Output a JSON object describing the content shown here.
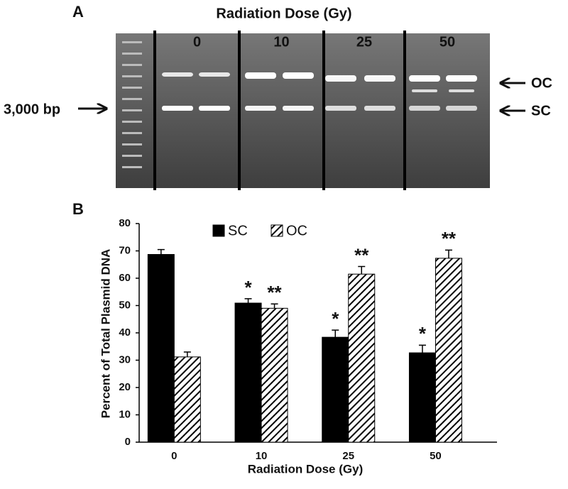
{
  "panel_a": {
    "label": "A",
    "title": "Radiation Dose (Gy)",
    "lanes": [
      "0",
      "10",
      "25",
      "50"
    ],
    "marker": "3,000 bp",
    "bands": [
      "OC",
      "SC"
    ]
  },
  "chart_data": {
    "type": "bar",
    "panel_label": "B",
    "ylabel": "Percent of Total Plasmid DNA",
    "xlabel": "Radiation Dose (Gy)",
    "categories": [
      "0",
      "10",
      "25",
      "50"
    ],
    "series": [
      {
        "name": "SC",
        "color": "#000000",
        "hatch": false,
        "values": [
          68.7,
          50.9,
          38.4,
          32.7
        ],
        "errors": [
          1.8,
          1.6,
          2.6,
          2.8
        ],
        "annotations": [
          null,
          "*",
          "*",
          "*"
        ]
      },
      {
        "name": "OC",
        "color": "#000000",
        "hatch": true,
        "values": [
          31.2,
          49.0,
          61.5,
          67.3
        ],
        "errors": [
          1.8,
          1.6,
          2.8,
          3.0
        ],
        "annotations": [
          null,
          "**",
          "**",
          "**"
        ]
      }
    ],
    "ylim": [
      0,
      80
    ],
    "yticks": [
      0,
      10,
      20,
      30,
      40,
      50,
      60,
      70,
      80
    ],
    "grid": false,
    "legend": "top"
  }
}
